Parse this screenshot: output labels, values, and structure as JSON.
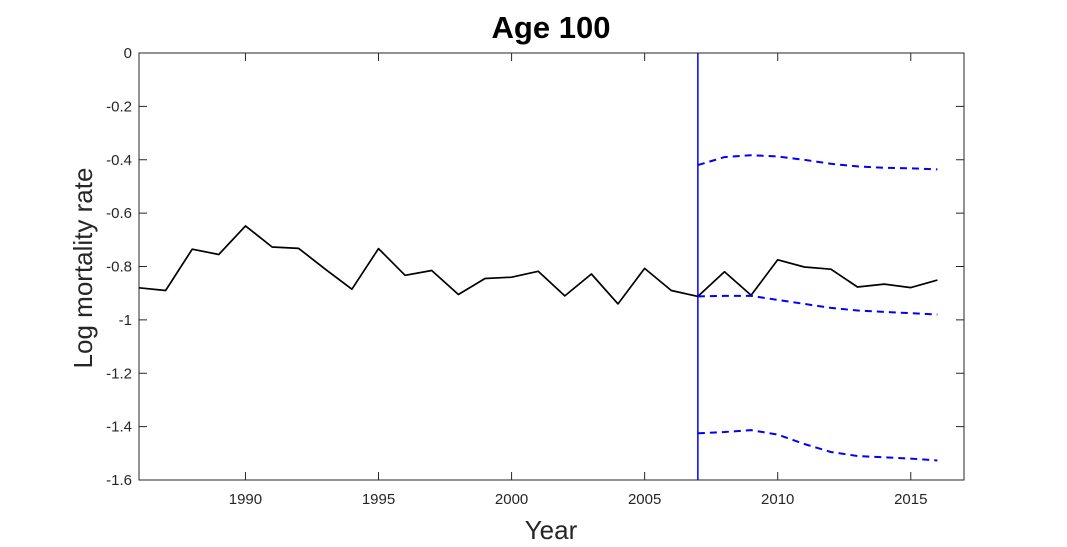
{
  "chart_data": {
    "type": "line",
    "title": "Age 100",
    "xlabel": "Year",
    "ylabel": "Log mortality rate",
    "xlim": [
      1986,
      2017
    ],
    "ylim": [
      -1.6,
      0
    ],
    "xticks": [
      "1990",
      "1995",
      "2000",
      "2005",
      "2010",
      "2015"
    ],
    "yticks": [
      "0",
      "-0.2",
      "-0.4",
      "-0.6",
      "-0.8",
      "-1",
      "-1.2",
      "-1.4",
      "-1.6"
    ],
    "grid": false,
    "legend": "none",
    "vertical_line": {
      "x": 2007,
      "color": "#0000ff"
    },
    "series": [
      {
        "style": "solid",
        "color": "#000000",
        "x": [
          1986,
          1987,
          1988,
          1989,
          1990,
          1991,
          1992,
          1993,
          1994,
          1995,
          1996,
          1997,
          1998,
          1999,
          2000,
          2001,
          2002,
          2003,
          2004,
          2005,
          2006,
          2007,
          2008,
          2009,
          2010,
          2011,
          2012,
          2013,
          2014,
          2015,
          2016
        ],
        "y": [
          -0.88,
          -0.89,
          -0.735,
          -0.755,
          -0.648,
          -0.727,
          -0.732,
          -0.81,
          -0.885,
          -0.733,
          -0.833,
          -0.815,
          -0.905,
          -0.845,
          -0.84,
          -0.818,
          -0.91,
          -0.828,
          -0.94,
          -0.807,
          -0.89,
          -0.912,
          -0.82,
          -0.908,
          -0.775,
          -0.802,
          -0.81,
          -0.877,
          -0.866,
          -0.879,
          -0.851
        ]
      },
      {
        "style": "dashed",
        "color": "#0000ff",
        "x": [
          2007,
          2008,
          2009,
          2010,
          2011,
          2012,
          2013,
          2014,
          2015,
          2016
        ],
        "y": [
          -0.42,
          -0.39,
          -0.383,
          -0.388,
          -0.4,
          -0.415,
          -0.425,
          -0.43,
          -0.432,
          -0.436
        ]
      },
      {
        "style": "dashed",
        "color": "#0000ff",
        "x": [
          2007,
          2008,
          2009,
          2010,
          2011,
          2012,
          2013,
          2014,
          2015,
          2016
        ],
        "y": [
          -0.912,
          -0.91,
          -0.91,
          -0.925,
          -0.94,
          -0.955,
          -0.965,
          -0.97,
          -0.975,
          -0.98
        ]
      },
      {
        "style": "dashed",
        "color": "#0000ff",
        "x": [
          2007,
          2008,
          2009,
          2010,
          2011,
          2012,
          2013,
          2014,
          2015,
          2016
        ],
        "y": [
          -1.425,
          -1.42,
          -1.413,
          -1.43,
          -1.465,
          -1.495,
          -1.51,
          -1.515,
          -1.52,
          -1.527
        ]
      }
    ]
  }
}
